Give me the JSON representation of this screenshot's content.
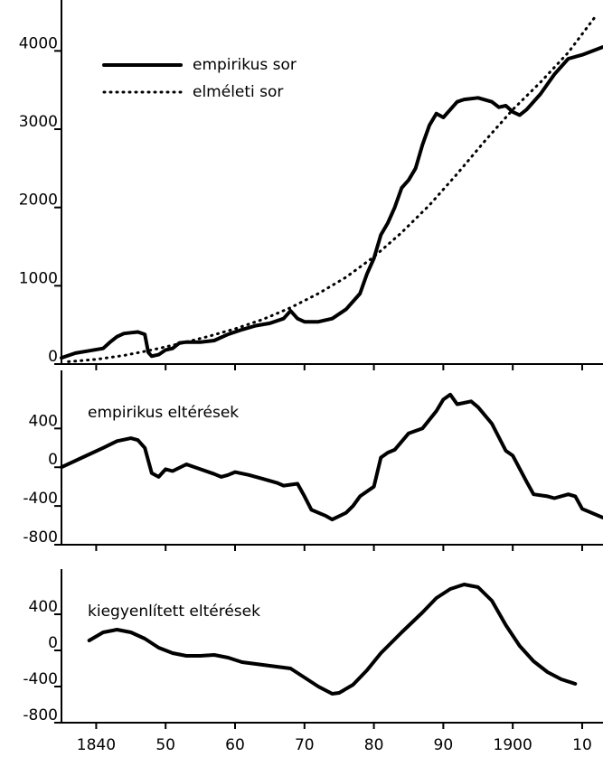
{
  "chart_data": [
    {
      "type": "line",
      "xlim": [
        1835,
        1913
      ],
      "ylim": [
        0,
        4650
      ],
      "yticks": [
        0,
        1000,
        2000,
        3000,
        4000
      ],
      "legend": "upper left",
      "series": [
        {
          "name": "empirikus sor",
          "color": "#000000",
          "style": "solid",
          "x": [
            1835,
            1837,
            1839,
            1841,
            1842,
            1843,
            1844,
            1845,
            1846,
            1847,
            1847.5,
            1848,
            1849,
            1850,
            1851,
            1852,
            1853,
            1855,
            1857,
            1859,
            1861,
            1863,
            1865,
            1867,
            1868,
            1869,
            1870,
            1872,
            1874,
            1876,
            1878,
            1879,
            1880,
            1881,
            1882,
            1883,
            1884,
            1885,
            1886,
            1887,
            1888,
            1889,
            1890,
            1891,
            1892,
            1893,
            1895,
            1897,
            1898,
            1899,
            1900,
            1901,
            1902,
            1904,
            1906,
            1908,
            1910,
            1913
          ],
          "values": [
            80,
            140,
            170,
            200,
            280,
            350,
            390,
            400,
            410,
            380,
            150,
            100,
            120,
            180,
            200,
            270,
            280,
            280,
            300,
            380,
            440,
            490,
            520,
            580,
            680,
            580,
            540,
            540,
            580,
            700,
            900,
            1150,
            1350,
            1650,
            1800,
            2000,
            2250,
            2350,
            2500,
            2800,
            3050,
            3200,
            3150,
            3250,
            3350,
            3380,
            3400,
            3350,
            3280,
            3300,
            3220,
            3180,
            3250,
            3450,
            3700,
            3900,
            3950,
            4050
          ]
        },
        {
          "name": "elméleti sor",
          "color": "#000000",
          "style": "dotted",
          "x": [
            1836,
            1840,
            1844,
            1848,
            1852,
            1856,
            1860,
            1864,
            1868,
            1872,
            1876,
            1880,
            1884,
            1888,
            1892,
            1896,
            1900,
            1904,
            1908,
            1912
          ],
          "values": [
            30,
            60,
            110,
            180,
            260,
            350,
            450,
            570,
            720,
            900,
            1110,
            1370,
            1680,
            2030,
            2430,
            2850,
            3250,
            3600,
            3980,
            4450
          ]
        }
      ]
    },
    {
      "type": "line",
      "title": "empirikus eltérések",
      "xlim": [
        1835,
        1913
      ],
      "ylim": [
        -800,
        1000
      ],
      "yticks": [
        -800,
        -400,
        0,
        400
      ],
      "series": [
        {
          "color": "#000000",
          "style": "solid",
          "x": [
            1835,
            1838,
            1841,
            1843,
            1845,
            1846,
            1847,
            1848,
            1849,
            1850,
            1851,
            1853,
            1855,
            1857,
            1858,
            1859,
            1860,
            1862,
            1864,
            1866,
            1867,
            1869,
            1870,
            1871,
            1873,
            1874,
            1876,
            1877,
            1878,
            1880,
            1881,
            1882,
            1883,
            1885,
            1887,
            1889,
            1890,
            1891,
            1892,
            1894,
            1895,
            1897,
            1899,
            1900,
            1902,
            1903,
            1905,
            1906,
            1908,
            1909,
            1910,
            1913
          ],
          "values": [
            0,
            100,
            200,
            270,
            300,
            280,
            200,
            -60,
            -100,
            -20,
            -40,
            30,
            -20,
            -70,
            -100,
            -80,
            -50,
            -80,
            -120,
            -160,
            -190,
            -170,
            -300,
            -440,
            -500,
            -540,
            -470,
            -400,
            -300,
            -200,
            100,
            150,
            180,
            350,
            400,
            580,
            700,
            750,
            650,
            680,
            620,
            450,
            170,
            120,
            -150,
            -280,
            -300,
            -320,
            -280,
            -300,
            -430,
            -520
          ]
        }
      ]
    },
    {
      "type": "line",
      "title": "kiegyenlített eltérések",
      "xlim": [
        1835,
        1913
      ],
      "ylim": [
        -800,
        900
      ],
      "yticks": [
        -800,
        -400,
        0,
        400
      ],
      "xticks": [
        {
          "value": 1840,
          "label": "1840"
        },
        {
          "value": 1850,
          "label": "50"
        },
        {
          "value": 1860,
          "label": "60"
        },
        {
          "value": 1870,
          "label": "70"
        },
        {
          "value": 1880,
          "label": "80"
        },
        {
          "value": 1890,
          "label": "90"
        },
        {
          "value": 1900,
          "label": "1900"
        },
        {
          "value": 1910,
          "label": "10"
        }
      ],
      "series": [
        {
          "color": "#000000",
          "style": "solid",
          "x": [
            1839,
            1841,
            1843,
            1845,
            1847,
            1849,
            1851,
            1853,
            1855,
            1857,
            1859,
            1861,
            1864,
            1866,
            1868,
            1870,
            1872,
            1874,
            1875,
            1877,
            1879,
            1881,
            1884,
            1887,
            1889,
            1891,
            1893,
            1895,
            1897,
            1899,
            1901,
            1903,
            1905,
            1907,
            1909
          ],
          "values": [
            110,
            200,
            230,
            200,
            130,
            30,
            -30,
            -60,
            -60,
            -50,
            -80,
            -130,
            -160,
            -180,
            -200,
            -300,
            -400,
            -480,
            -470,
            -380,
            -220,
            -30,
            200,
            420,
            580,
            680,
            730,
            700,
            550,
            280,
            50,
            -120,
            -240,
            -320,
            -370
          ]
        }
      ]
    }
  ]
}
